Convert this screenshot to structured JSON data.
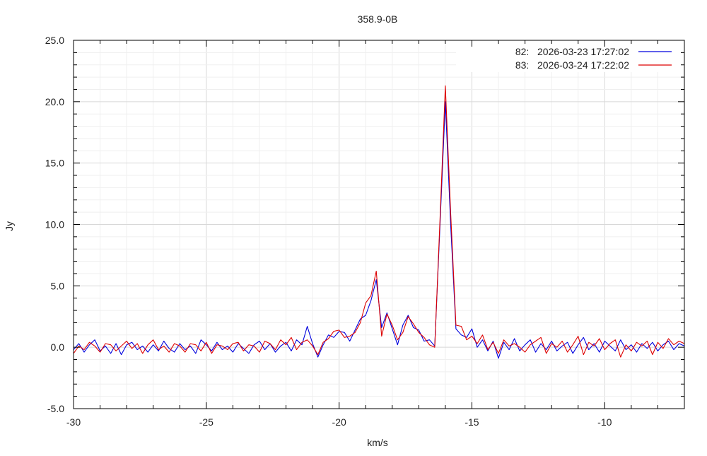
{
  "chart_data": {
    "type": "line",
    "title": "358.9-0B",
    "xlabel": "km/s",
    "ylabel": "Jy",
    "xlim": [
      -30,
      -7
    ],
    "ylim": [
      -5,
      25
    ],
    "x_ticks": [
      "-30",
      "-25",
      "-20",
      "-15",
      "-10"
    ],
    "x_tick_values": [
      -30,
      -25,
      -20,
      -15,
      -10
    ],
    "y_ticks": [
      "-5.0",
      "0.0",
      "5.0",
      "10.0",
      "15.0",
      "20.0",
      "25.0"
    ],
    "y_tick_values": [
      -5,
      0,
      5,
      10,
      15,
      20,
      25
    ],
    "grid": true,
    "legend_position": "top-right",
    "x_start": -30,
    "x_step": 0.2,
    "series": [
      {
        "name": "82:   2026-03-23 17:27:02",
        "color": "#0000dd",
        "values": [
          -0.2,
          0.3,
          -0.4,
          0.2,
          0.6,
          -0.3,
          0.1,
          -0.5,
          0.3,
          -0.6,
          0.2,
          0.4,
          -0.2,
          0.1,
          -0.4,
          0.2,
          -0.3,
          0.5,
          -0.1,
          -0.4,
          0.3,
          -0.2,
          0.1,
          -0.5,
          0.6,
          0.2,
          -0.3,
          0.4,
          -0.2,
          0.1,
          -0.4,
          0.3,
          -0.1,
          -0.5,
          0.2,
          0.5,
          -0.2,
          0.3,
          -0.4,
          0.1,
          0.4,
          -0.3,
          0.6,
          0.2,
          1.7,
          0.3,
          -0.8,
          0.2,
          1.0,
          0.8,
          1.3,
          1.2,
          0.5,
          1.4,
          2.3,
          2.6,
          3.8,
          5.5,
          1.6,
          2.8,
          1.5,
          0.2,
          1.8,
          2.6,
          1.6,
          1.4,
          0.5,
          0.6,
          0.1,
          10.0,
          20.0,
          10.0,
          1.5,
          1.0,
          0.8,
          1.5,
          0.0,
          0.6,
          -0.3,
          0.5,
          -0.9,
          0.4,
          -0.2,
          0.7,
          -0.3,
          0.2,
          0.6,
          -0.4,
          0.3,
          -0.2,
          0.5,
          -0.3,
          0.1,
          0.4,
          -0.5,
          0.2,
          0.8,
          -0.2,
          0.3,
          -0.4,
          0.5,
          0.1,
          -0.3,
          0.6,
          -0.2,
          0.2,
          -0.4,
          0.3,
          -0.1,
          0.4,
          -0.3,
          0.2,
          0.5,
          -0.2,
          0.3,
          0.1
        ]
      },
      {
        "name": "83:   2026-03-24 17:22:02",
        "color": "#dd0000",
        "values": [
          -0.5,
          0.1,
          -0.2,
          0.4,
          0.1,
          -0.4,
          0.3,
          0.2,
          -0.3,
          0.1,
          0.5,
          -0.1,
          0.3,
          -0.5,
          0.2,
          0.6,
          -0.2,
          0.1,
          -0.4,
          0.3,
          0.1,
          -0.4,
          0.3,
          0.2,
          -0.3,
          0.4,
          -0.5,
          0.2,
          0.1,
          -0.2,
          0.3,
          0.4,
          -0.3,
          0.2,
          0.1,
          -0.4,
          0.5,
          0.3,
          -0.2,
          0.6,
          0.2,
          0.8,
          -0.2,
          0.4,
          0.6,
          0.1,
          -0.6,
          0.4,
          0.7,
          1.3,
          1.4,
          0.8,
          0.9,
          1.2,
          2.0,
          3.6,
          4.2,
          6.2,
          0.9,
          2.7,
          1.8,
          0.6,
          1.2,
          2.5,
          1.9,
          1.2,
          0.8,
          0.2,
          0.0,
          10.5,
          21.3,
          11.0,
          1.8,
          1.7,
          0.6,
          0.9,
          0.3,
          1.0,
          -0.2,
          0.4,
          -0.5,
          0.6,
          0.1,
          0.3,
          0.0,
          -0.4,
          0.2,
          0.5,
          0.8,
          -0.5,
          0.3,
          0.0,
          0.5,
          -0.4,
          0.2,
          0.9,
          -0.6,
          0.4,
          0.1,
          0.7,
          -0.2,
          0.3,
          0.6,
          -0.8,
          0.2,
          -0.3,
          0.4,
          0.1,
          0.5,
          -0.6,
          0.4,
          -0.1,
          0.7,
          0.2,
          0.5,
          0.3
        ]
      }
    ]
  }
}
